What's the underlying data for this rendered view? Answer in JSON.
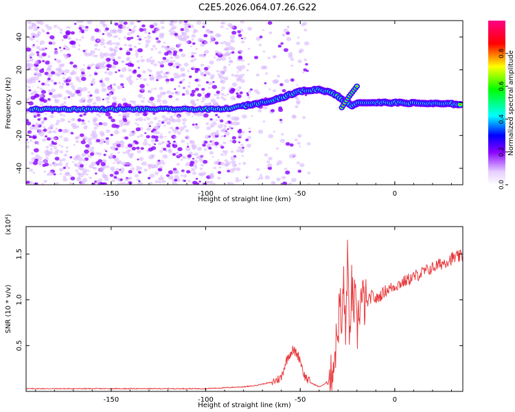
{
  "title": "C2E5.2026.064.07.26.G22",
  "chart_data": [
    {
      "type": "heatmap",
      "xlabel": "Height of straight line (km)",
      "ylabel": "Frequency (Hz)",
      "xlim": [
        -195,
        36
      ],
      "ylim": [
        -50,
        50
      ],
      "xticks": [
        -150,
        -100,
        -50,
        0
      ],
      "yticks": [
        -40,
        -20,
        0,
        20,
        40
      ],
      "colorbar": {
        "label": "Normalized spectral amplitude",
        "range": [
          0,
          1
        ],
        "ticks": [
          "0.0",
          "0.2",
          "0.4",
          "0.6",
          "0.8"
        ]
      },
      "colors": [
        "#ffffff",
        "#8800ff",
        "#0000ff",
        "#00ffff",
        "#00ff00",
        "#ffff00",
        "#ff0000",
        "#ff00aa"
      ],
      "ridge": [
        {
          "x": -195,
          "y": -4
        },
        {
          "x": -90,
          "y": -4
        },
        {
          "x": -80,
          "y": -2
        },
        {
          "x": -70,
          "y": 0
        },
        {
          "x": -60,
          "y": 3
        },
        {
          "x": -50,
          "y": 7
        },
        {
          "x": -40,
          "y": 8
        },
        {
          "x": -33,
          "y": 6
        },
        {
          "x": -30,
          "y": 4
        },
        {
          "x": -25,
          "y": 0
        },
        {
          "x": -22,
          "y": -2
        },
        {
          "x": -20,
          "y": 0
        },
        {
          "x": 0,
          "y": 0
        },
        {
          "x": 36,
          "y": -1
        }
      ],
      "ridge_branch": [
        {
          "x": -28,
          "y": -3
        },
        {
          "x": -24,
          "y": 4
        },
        {
          "x": -20,
          "y": 10
        }
      ]
    },
    {
      "type": "line",
      "xlabel": "Height of straight line (km)",
      "ylabel": "SNR (10 * v/v)",
      "multiplier": "(x10⁴)",
      "xlim": [
        -195,
        36
      ],
      "ylim": [
        0,
        1.8
      ],
      "xticks": [
        -150,
        -100,
        -50,
        0
      ],
      "yticks": [
        0.5,
        1.0,
        1.5
      ],
      "yticklabels": [
        "0.5",
        "1.0",
        "1.5"
      ],
      "color": "#e8383b",
      "series": [
        {
          "x": [
            -195,
            -180,
            -160,
            -140,
            -120,
            -100,
            -90,
            -80,
            -75,
            -70,
            -65,
            -60,
            -58,
            -56,
            -54,
            -52,
            -50,
            -48,
            -45,
            -42,
            -40,
            -37,
            -34,
            -32,
            -30,
            -29,
            -28,
            -27,
            -26,
            -25,
            -24,
            -23,
            -22,
            -21,
            -20,
            -19,
            -18,
            -15,
            -12,
            -10,
            -5,
            0,
            5,
            10,
            15,
            20,
            25,
            30,
            36
          ],
          "y": [
            0.03,
            0.03,
            0.03,
            0.03,
            0.03,
            0.03,
            0.04,
            0.05,
            0.06,
            0.08,
            0.1,
            0.15,
            0.3,
            0.4,
            0.45,
            0.42,
            0.35,
            0.18,
            0.1,
            0.07,
            0.05,
            0.08,
            0.15,
            0.35,
            0.7,
            1.0,
            0.6,
            1.3,
            0.5,
            1.6,
            0.4,
            1.2,
            0.9,
            1.0,
            0.6,
            0.9,
            1.0,
            0.95,
            1.05,
            1.0,
            1.1,
            1.15,
            1.2,
            1.25,
            1.3,
            1.35,
            1.4,
            1.45,
            1.48
          ]
        }
      ]
    }
  ]
}
